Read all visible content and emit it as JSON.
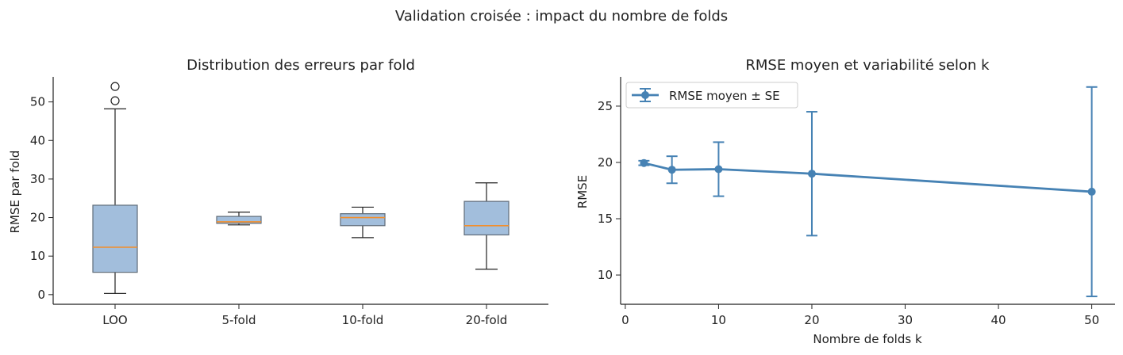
{
  "suptitle": "Validation croisée : impact du nombre de folds",
  "colors": {
    "box_fill": "#a2bedc",
    "box_edge": "#5f6b78",
    "median": "#f28e2b",
    "line": "#4682b4",
    "axis": "#222222"
  },
  "chart_data": [
    {
      "type": "box",
      "title": "Distribution des erreurs par fold",
      "xlabel": "",
      "ylabel": "RMSE par fold",
      "ylim": [
        -2.5,
        56.5
      ],
      "yticks": [
        0,
        10,
        20,
        30,
        40,
        50
      ],
      "categories": [
        "LOO",
        "5-fold",
        "10-fold",
        "20-fold"
      ],
      "boxes": [
        {
          "label": "LOO",
          "whisker_low": 0.3,
          "q1": 5.8,
          "median": 12.3,
          "q3": 23.2,
          "whisker_high": 48.2,
          "outliers": [
            50.3,
            54.0
          ]
        },
        {
          "label": "5-fold",
          "whisker_low": 18.1,
          "q1": 18.5,
          "median": 18.9,
          "q3": 20.3,
          "whisker_high": 21.4,
          "outliers": []
        },
        {
          "label": "10-fold",
          "whisker_low": 14.8,
          "q1": 17.9,
          "median": 20.0,
          "q3": 21.0,
          "whisker_high": 22.7,
          "outliers": []
        },
        {
          "label": "20-fold",
          "whisker_low": 6.6,
          "q1": 15.5,
          "median": 17.9,
          "q3": 24.2,
          "whisker_high": 29.0,
          "outliers": []
        }
      ]
    },
    {
      "type": "line",
      "title": "RMSE moyen et variabilité selon k",
      "xlabel": "Nombre de folds k",
      "ylabel": "RMSE",
      "xlim": [
        -0.5,
        52.5
      ],
      "ylim": [
        7.4,
        27.6
      ],
      "xticks": [
        0,
        10,
        20,
        30,
        40,
        50
      ],
      "yticks": [
        10,
        15,
        20,
        25
      ],
      "legend_position": "top-left",
      "series": [
        {
          "name": "RMSE moyen ± SE",
          "x": [
            2,
            5,
            10,
            20,
            50
          ],
          "y": [
            19.95,
            19.35,
            19.4,
            19.0,
            17.4
          ],
          "err": [
            0.2,
            1.2,
            2.4,
            5.5,
            9.3
          ]
        }
      ]
    }
  ]
}
